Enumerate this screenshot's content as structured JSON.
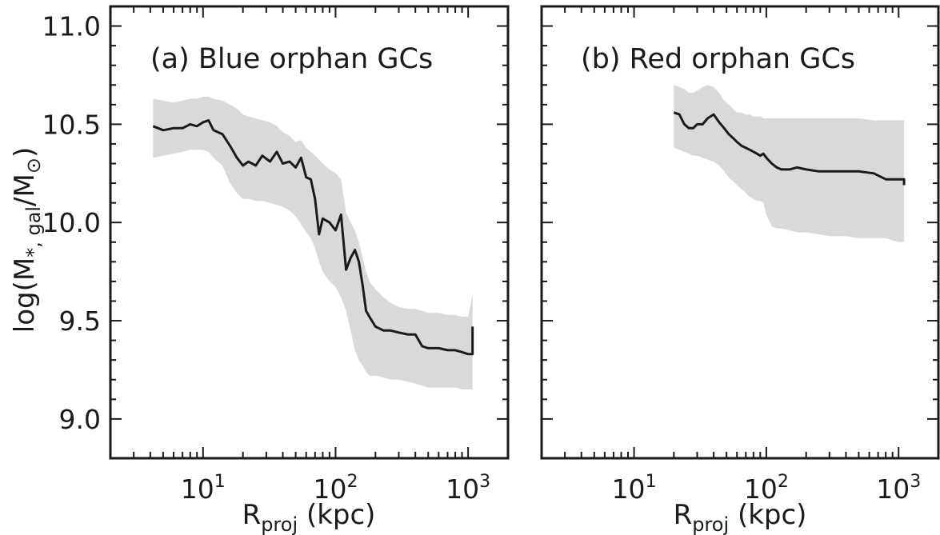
{
  "colors": {
    "line": "#1a1a1a",
    "band": "#d9d9d9",
    "axis": "#1a1a1a"
  },
  "y_axis": {
    "label_main": "log(M",
    "label_sub": "*, gal",
    "label_mid": "/M",
    "label_end": ")"
  },
  "chart_data": [
    {
      "type": "line",
      "title": "(a) Blue orphan GCs",
      "xlabel_main": "R",
      "xlabel_sub": "proj",
      "xlabel_unit": "(kpc)",
      "ylabel": "log(M*, gal/M⊙)",
      "x_scale": "log",
      "xlim": [
        2,
        2000
      ],
      "ylim": [
        8.8,
        11.1
      ],
      "x_ticks": [
        {
          "base": "10",
          "exp": "1"
        },
        {
          "base": "10",
          "exp": "2"
        },
        {
          "base": "10",
          "exp": "3"
        }
      ],
      "x_tick_values": [
        10,
        100,
        1000
      ],
      "y_ticks": [
        "9.0",
        "9.5",
        "10.0",
        "10.5",
        "11.0"
      ],
      "y_tick_values": [
        9.0,
        9.5,
        10.0,
        10.5,
        11.0
      ],
      "series": [
        {
          "x": [
            4.2,
            5,
            6,
            7,
            8,
            9,
            10,
            11,
            12,
            14,
            16,
            18,
            20,
            22,
            25,
            28,
            32,
            36,
            40,
            45,
            50,
            55,
            60,
            65,
            70,
            75,
            80,
            90,
            100,
            110,
            120,
            130,
            140,
            150,
            160,
            170,
            180,
            200,
            230,
            260,
            300,
            350,
            400,
            450,
            500,
            600,
            700,
            800,
            900,
            1000,
            1080,
            1080
          ],
          "y": [
            10.49,
            10.47,
            10.48,
            10.48,
            10.5,
            10.49,
            10.51,
            10.52,
            10.47,
            10.45,
            10.39,
            10.33,
            10.29,
            10.31,
            10.29,
            10.34,
            10.31,
            10.36,
            10.3,
            10.31,
            10.28,
            10.33,
            10.23,
            10.22,
            10.12,
            9.94,
            10.02,
            10.0,
            9.96,
            10.04,
            9.76,
            9.82,
            9.86,
            9.8,
            9.68,
            9.55,
            9.52,
            9.47,
            9.45,
            9.45,
            9.44,
            9.43,
            9.43,
            9.37,
            9.36,
            9.36,
            9.35,
            9.35,
            9.34,
            9.33,
            9.33,
            9.47
          ],
          "lower": [
            10.33,
            10.34,
            10.35,
            10.36,
            10.37,
            10.37,
            10.37,
            10.36,
            10.33,
            10.29,
            10.2,
            10.15,
            10.12,
            10.12,
            10.11,
            10.11,
            10.1,
            10.09,
            10.08,
            10.06,
            10.03,
            9.99,
            9.95,
            9.92,
            9.87,
            9.8,
            9.75,
            9.7,
            9.67,
            9.62,
            9.55,
            9.45,
            9.35,
            9.3,
            9.27,
            9.24,
            9.22,
            9.22,
            9.21,
            9.2,
            9.2,
            9.19,
            9.18,
            9.17,
            9.16,
            9.16,
            9.16,
            9.16,
            9.15,
            9.15,
            9.15,
            9.15
          ],
          "upper": [
            10.63,
            10.62,
            10.61,
            10.62,
            10.63,
            10.63,
            10.64,
            10.64,
            10.63,
            10.62,
            10.6,
            10.58,
            10.55,
            10.54,
            10.53,
            10.52,
            10.51,
            10.49,
            10.46,
            10.44,
            10.41,
            10.42,
            10.38,
            10.36,
            10.34,
            10.32,
            10.3,
            10.27,
            10.25,
            10.22,
            10.05,
            10.0,
            9.96,
            9.9,
            9.82,
            9.75,
            9.7,
            9.66,
            9.62,
            9.59,
            9.57,
            9.56,
            9.56,
            9.55,
            9.54,
            9.54,
            9.53,
            9.53,
            9.52,
            9.52,
            9.63,
            9.63
          ]
        }
      ]
    },
    {
      "type": "line",
      "title": "(b) Red orphan GCs",
      "xlabel_main": "R",
      "xlabel_sub": "proj",
      "xlabel_unit": "(kpc)",
      "x_scale": "log",
      "xlim": [
        2,
        2000
      ],
      "ylim": [
        8.8,
        11.1
      ],
      "x_ticks": [
        {
          "base": "10",
          "exp": "1"
        },
        {
          "base": "10",
          "exp": "2"
        },
        {
          "base": "10",
          "exp": "3"
        }
      ],
      "x_tick_values": [
        10,
        100,
        1000
      ],
      "y_tick_values": [
        9.0,
        9.5,
        10.0,
        10.5,
        11.0
      ],
      "series": [
        {
          "x": [
            20,
            22,
            24,
            26,
            28,
            30,
            33,
            36,
            40,
            44,
            48,
            52,
            56,
            60,
            65,
            70,
            75,
            80,
            85,
            90,
            95,
            100,
            110,
            120,
            130,
            150,
            170,
            200,
            250,
            300,
            400,
            500,
            650,
            800,
            1000,
            1100,
            1100
          ],
          "y": [
            10.56,
            10.55,
            10.5,
            10.48,
            10.48,
            10.5,
            10.5,
            10.53,
            10.55,
            10.51,
            10.48,
            10.45,
            10.43,
            10.41,
            10.39,
            10.38,
            10.37,
            10.36,
            10.35,
            10.34,
            10.35,
            10.33,
            10.3,
            10.28,
            10.27,
            10.27,
            10.28,
            10.27,
            10.26,
            10.26,
            10.26,
            10.26,
            10.25,
            10.22,
            10.22,
            10.22,
            10.19
          ],
          "lower": [
            10.38,
            10.37,
            10.36,
            10.35,
            10.34,
            10.34,
            10.33,
            10.32,
            10.31,
            10.29,
            10.26,
            10.23,
            10.21,
            10.19,
            10.17,
            10.15,
            10.13,
            10.12,
            10.11,
            10.11,
            10.1,
            10.04,
            9.98,
            9.97,
            9.97,
            9.96,
            9.95,
            9.95,
            9.94,
            9.93,
            9.93,
            9.92,
            9.92,
            9.92,
            9.9,
            9.9,
            9.9
          ],
          "upper": [
            10.7,
            10.69,
            10.68,
            10.66,
            10.66,
            10.67,
            10.69,
            10.7,
            10.69,
            10.66,
            10.62,
            10.6,
            10.58,
            10.56,
            10.56,
            10.55,
            10.55,
            10.54,
            10.54,
            10.54,
            10.53,
            10.53,
            10.53,
            10.53,
            10.53,
            10.53,
            10.53,
            10.53,
            10.53,
            10.53,
            10.53,
            10.53,
            10.52,
            10.52,
            10.52,
            10.52,
            10.52
          ]
        }
      ]
    }
  ]
}
